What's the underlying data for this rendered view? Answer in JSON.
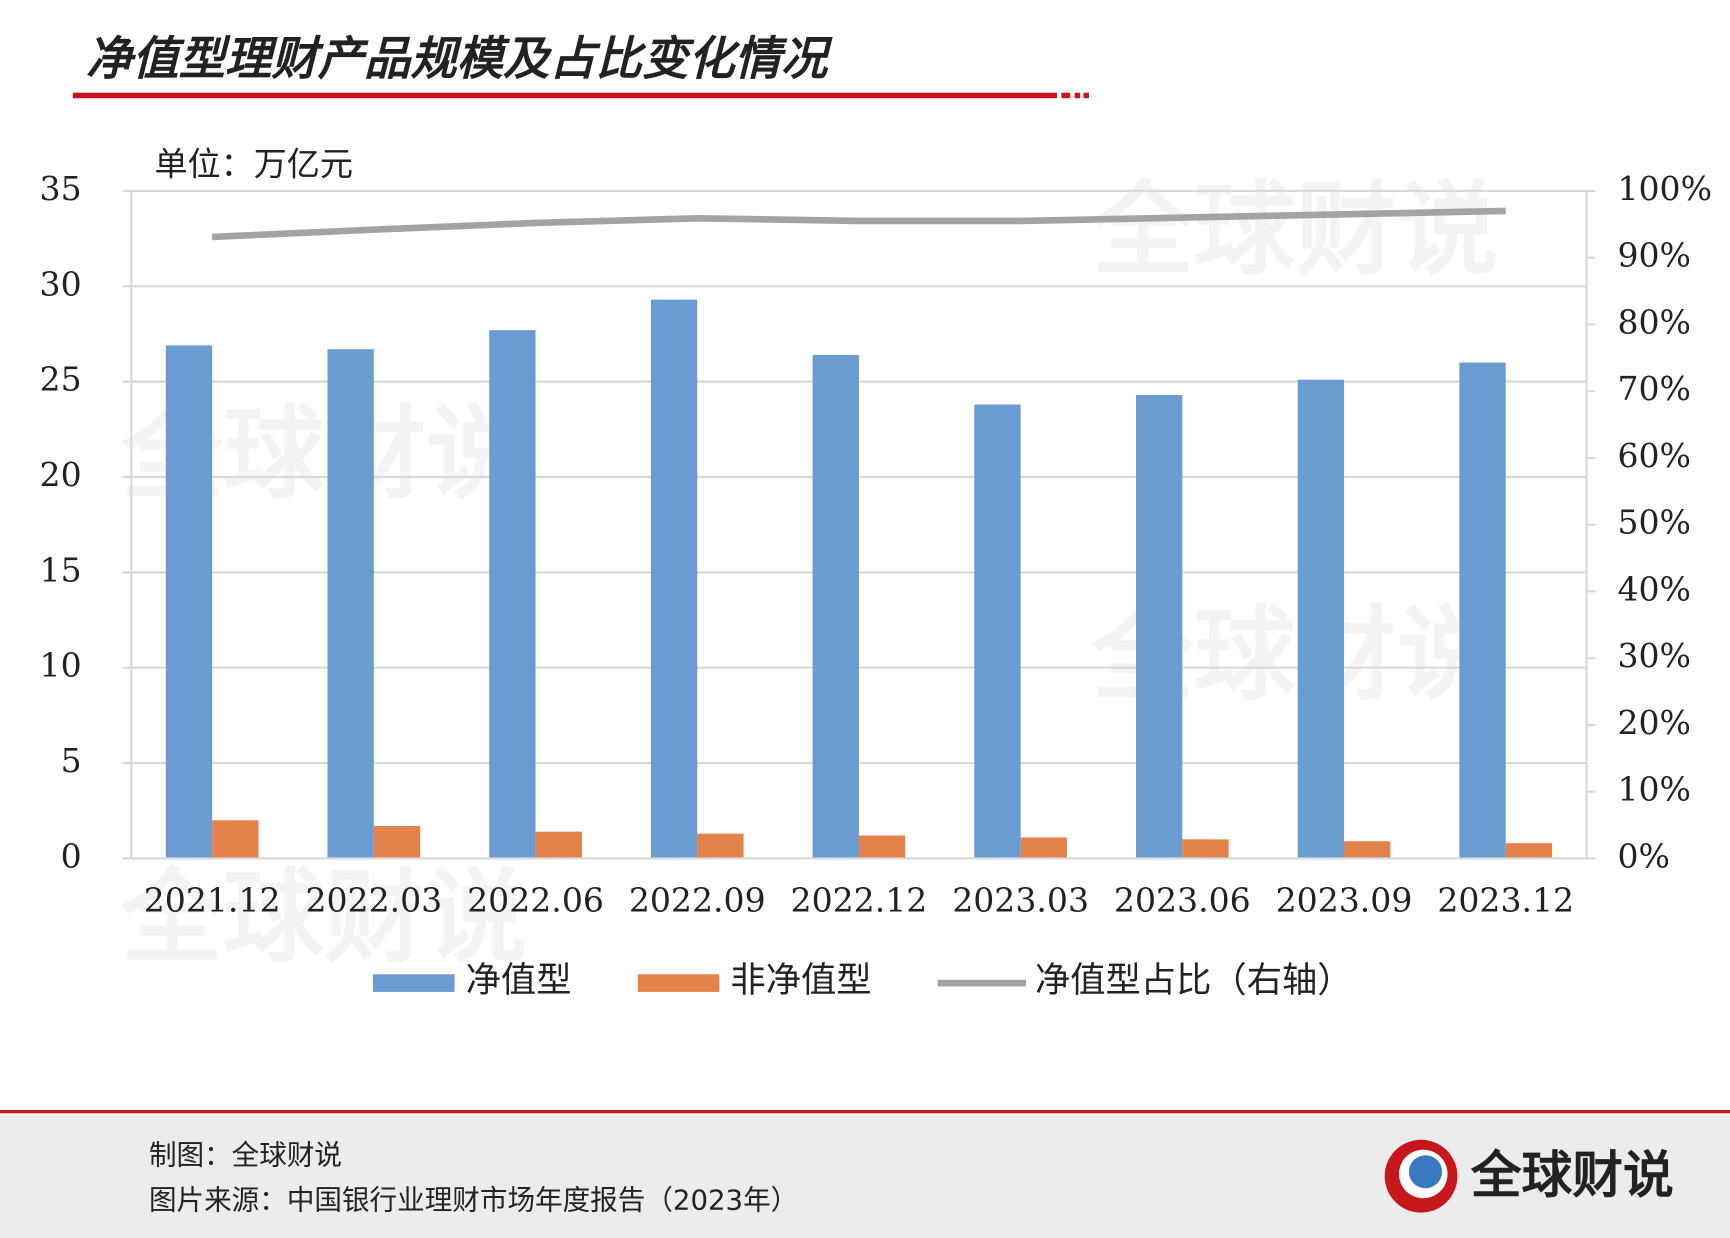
{
  "chart_data": {
    "type": "bar",
    "title": "净值型理财产品规模及占比变化情况",
    "y_label": "单位：万亿元",
    "categories": [
      "2021.12",
      "2022.03",
      "2022.06",
      "2022.09",
      "2022.12",
      "2023.03",
      "2023.06",
      "2023.09",
      "2023.12"
    ],
    "series": [
      {
        "name": "净值型",
        "color": "#6a9bd1",
        "values": [
          26.9,
          26.7,
          27.7,
          29.3,
          26.4,
          23.8,
          24.3,
          25.1,
          26.0
        ]
      },
      {
        "name": "非净值型",
        "color": "#e3824a",
        "values": [
          2.0,
          1.7,
          1.4,
          1.3,
          1.2,
          1.1,
          1.0,
          0.9,
          0.8
        ]
      },
      {
        "name": "净值型占比（右轴）",
        "color": "#a3a3a3",
        "type": "line",
        "axis": "y2",
        "values": [
          93.1,
          94.2,
          95.2,
          95.9,
          95.5,
          95.5,
          96.0,
          96.5,
          97.0
        ]
      }
    ],
    "ylim": [
      0,
      35
    ],
    "yticks": [
      0,
      5,
      10,
      15,
      20,
      25,
      30,
      35
    ],
    "y2lim": [
      0,
      100
    ],
    "y2ticks": [
      {
        "value": 0,
        "label": "0%"
      },
      {
        "value": 10,
        "label": "10%"
      },
      {
        "value": 20,
        "label": "20%"
      },
      {
        "value": 30,
        "label": "30%"
      },
      {
        "value": 40,
        "label": "40%"
      },
      {
        "value": 50,
        "label": "50%"
      },
      {
        "value": 60,
        "label": "60%"
      },
      {
        "value": 70,
        "label": "70%"
      },
      {
        "value": 80,
        "label": "80%"
      },
      {
        "value": 90,
        "label": "90%"
      },
      {
        "value": 100,
        "label": "100%"
      }
    ],
    "grid": true,
    "legend": "bottom"
  },
  "watermark": "全球财说",
  "footer": {
    "credit": "制图：全球财说",
    "source": "图片来源：中国银行业理财市场年度报告（2023年）",
    "logo": "全球财说"
  }
}
